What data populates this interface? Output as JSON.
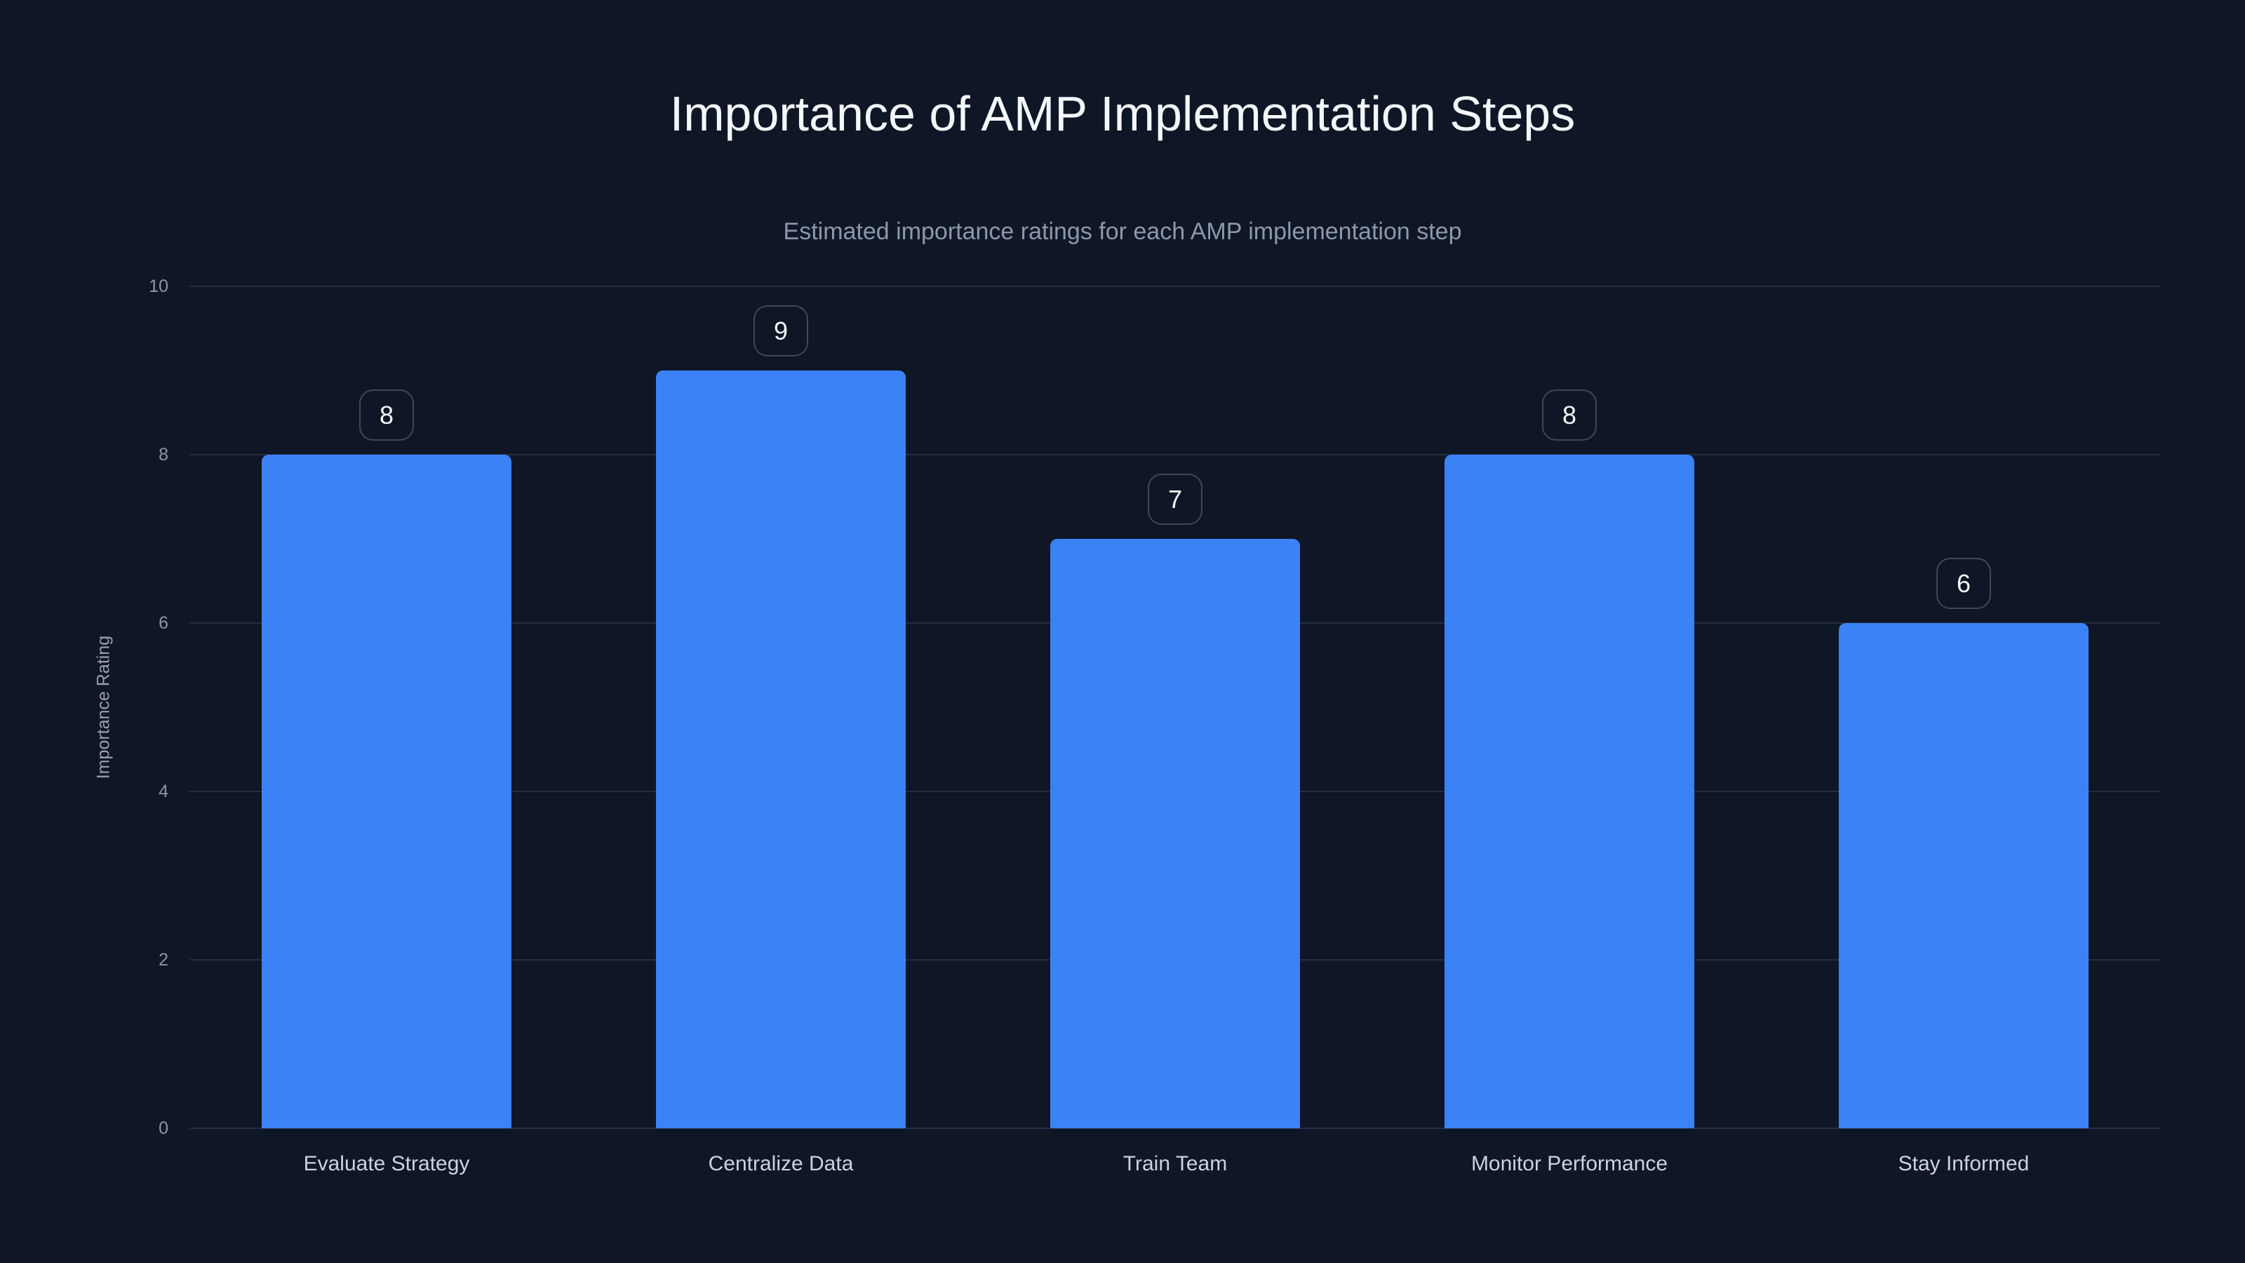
{
  "colors": {
    "background": "#0f1626",
    "bar_color": "#3b82f6",
    "grid_color": "#242e43",
    "title_color": "#f4f7fb",
    "subtitle_color": "#8c98ab",
    "tick_color": "#8b97a9",
    "category_color": "#cad3e0",
    "badge_border": "#3d485c",
    "badge_text": "#f4f7fb",
    "axis_title_color": "#95a1b3"
  },
  "chart_data": {
    "type": "bar",
    "title": "Importance of AMP Implementation Steps",
    "subtitle": "Estimated importance ratings for each AMP implementation step",
    "categories": [
      "Evaluate Strategy",
      "Centralize Data",
      "Train Team",
      "Monitor Performance",
      "Stay Informed"
    ],
    "values": [
      8,
      9,
      7,
      8,
      6
    ],
    "data_labels": [
      "8",
      "9",
      "7",
      "8",
      "6"
    ],
    "xlabel": "",
    "ylabel": "Importance Rating",
    "ylim": [
      0,
      10
    ],
    "yticks": [
      0,
      2,
      4,
      6,
      8,
      10
    ],
    "grid": true,
    "legend_position": "none"
  }
}
